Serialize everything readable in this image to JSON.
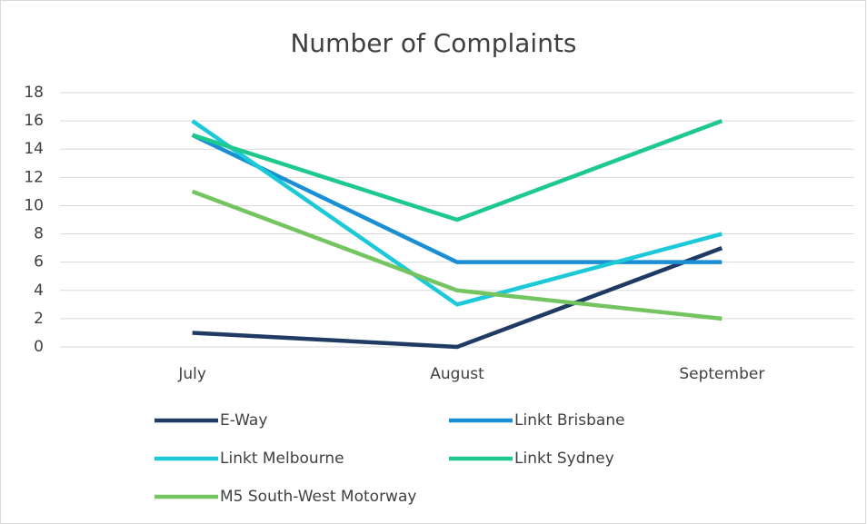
{
  "chart_data": {
    "type": "line",
    "title": "Number of Complaints",
    "categories": [
      "July",
      "August",
      "September"
    ],
    "series": [
      {
        "name": "E-Way",
        "color": "#1f3b63",
        "values": [
          1,
          0,
          7
        ]
      },
      {
        "name": "Linkt Brisbane",
        "color": "#1a8fd4",
        "values": [
          15,
          6,
          6
        ]
      },
      {
        "name": "Linkt Melbourne",
        "color": "#1cc9d9",
        "values": [
          16,
          3,
          8
        ]
      },
      {
        "name": "Linkt Sydney",
        "color": "#1ec98e",
        "values": [
          15,
          9,
          16
        ]
      },
      {
        "name": "M5 South-West Motorway",
        "color": "#74c561",
        "values": [
          11,
          4,
          2
        ]
      }
    ],
    "ylim": [
      0,
      18
    ],
    "yticks": [
      0,
      2,
      4,
      6,
      8,
      10,
      12,
      14,
      16,
      18
    ],
    "grid": true,
    "legend": "bottom"
  }
}
